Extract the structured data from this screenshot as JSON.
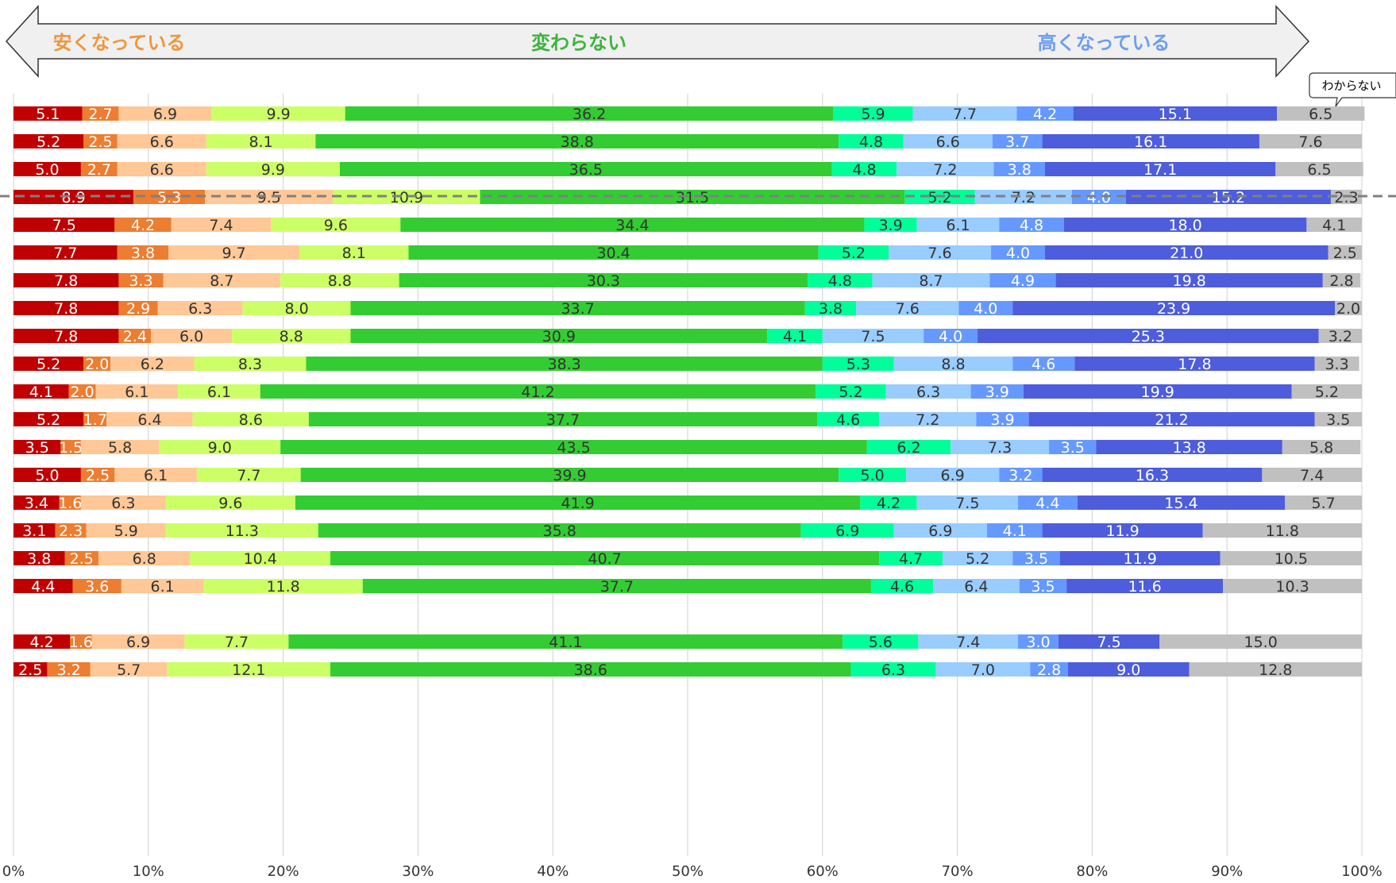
{
  "header": {
    "left_label": "安くなっている",
    "center_label": "変わらない",
    "right_label": "高くなっている"
  },
  "callout": {
    "label": "わからない"
  },
  "colors": {
    "left_label": "#f0963c",
    "center_label": "#3cb43c",
    "right_label": "#6e9ef0",
    "arrow_fill": "#f0f0f0",
    "arrow_stroke": "#333333",
    "grid": "#d0d0d0",
    "separator": "#808080"
  },
  "chart_data": {
    "type": "bar",
    "orientation": "horizontal",
    "stacked": true,
    "xlim": [
      0,
      100
    ],
    "x_ticks": [
      "0%",
      "10%",
      "20%",
      "30%",
      "40%",
      "50%",
      "60%",
      "70%",
      "80%",
      "90%",
      "100%"
    ],
    "grid": true,
    "legend": "none",
    "segment_colors": [
      "#c00000",
      "#ed7d31",
      "#ffc896",
      "#ccff66",
      "#33cc33",
      "#00ff99",
      "#99ccff",
      "#6699ff",
      "#4d5ddc",
      "#c0c0c0"
    ],
    "groups": [
      {
        "rows": [
          [
            5.1,
            2.7,
            6.9,
            9.9,
            36.2,
            5.9,
            7.7,
            4.2,
            15.1,
            6.5
          ],
          [
            5.2,
            2.5,
            6.6,
            8.1,
            38.8,
            4.8,
            6.6,
            3.7,
            16.1,
            7.6
          ],
          [
            5.0,
            2.7,
            6.6,
            9.9,
            36.5,
            4.8,
            7.2,
            3.8,
            17.1,
            6.5
          ]
        ]
      },
      {
        "rows": [
          [
            8.9,
            5.3,
            9.5,
            10.9,
            31.5,
            5.2,
            7.2,
            4.0,
            15.2,
            2.3
          ],
          [
            7.5,
            4.2,
            7.4,
            9.6,
            34.4,
            3.9,
            6.1,
            4.8,
            18.0,
            4.1
          ],
          [
            7.7,
            3.8,
            9.7,
            8.1,
            30.4,
            5.2,
            7.6,
            4.0,
            21.0,
            2.5
          ]
        ]
      },
      {
        "rows": [
          [
            7.8,
            3.3,
            8.7,
            8.8,
            30.3,
            4.8,
            8.7,
            4.9,
            19.8,
            2.8
          ],
          [
            7.8,
            2.9,
            6.3,
            8.0,
            33.7,
            3.8,
            7.6,
            4.0,
            23.9,
            2.0
          ],
          [
            7.8,
            2.4,
            6.0,
            8.8,
            30.9,
            4.1,
            7.5,
            4.0,
            25.3,
            3.2
          ]
        ]
      },
      {
        "rows": [
          [
            5.2,
            2.0,
            6.2,
            8.3,
            38.3,
            5.3,
            8.8,
            4.6,
            17.8,
            3.3
          ],
          [
            4.1,
            2.0,
            6.1,
            6.1,
            41.2,
            5.2,
            6.3,
            3.9,
            19.9,
            5.2
          ],
          [
            5.2,
            1.7,
            6.4,
            8.6,
            37.7,
            4.6,
            7.2,
            3.9,
            21.2,
            3.5
          ]
        ]
      },
      {
        "rows": [
          [
            3.5,
            1.5,
            5.8,
            9.0,
            43.5,
            6.2,
            7.3,
            3.5,
            13.8,
            5.8
          ],
          [
            5.0,
            2.5,
            6.1,
            7.7,
            39.9,
            5.0,
            6.9,
            3.2,
            16.3,
            7.4
          ],
          [
            3.4,
            1.6,
            6.3,
            9.6,
            41.9,
            4.2,
            7.5,
            4.4,
            15.4,
            5.7
          ]
        ]
      },
      {
        "rows": [
          [
            3.1,
            2.3,
            5.9,
            11.3,
            35.8,
            6.9,
            6.9,
            4.1,
            11.9,
            11.8
          ],
          [
            3.8,
            2.5,
            6.8,
            10.4,
            40.7,
            4.7,
            5.2,
            3.5,
            11.9,
            10.5
          ],
          [
            4.4,
            3.6,
            6.1,
            11.8,
            37.7,
            4.6,
            6.4,
            3.5,
            11.6,
            10.3
          ]
        ]
      },
      {
        "rows": [
          [
            4.2,
            1.6,
            6.9,
            7.7,
            41.1,
            5.6,
            7.4,
            3.0,
            7.5,
            15.0
          ],
          [
            2.5,
            3.2,
            5.7,
            12.1,
            38.6,
            6.3,
            7.0,
            2.8,
            9.0,
            12.8
          ]
        ]
      }
    ]
  }
}
